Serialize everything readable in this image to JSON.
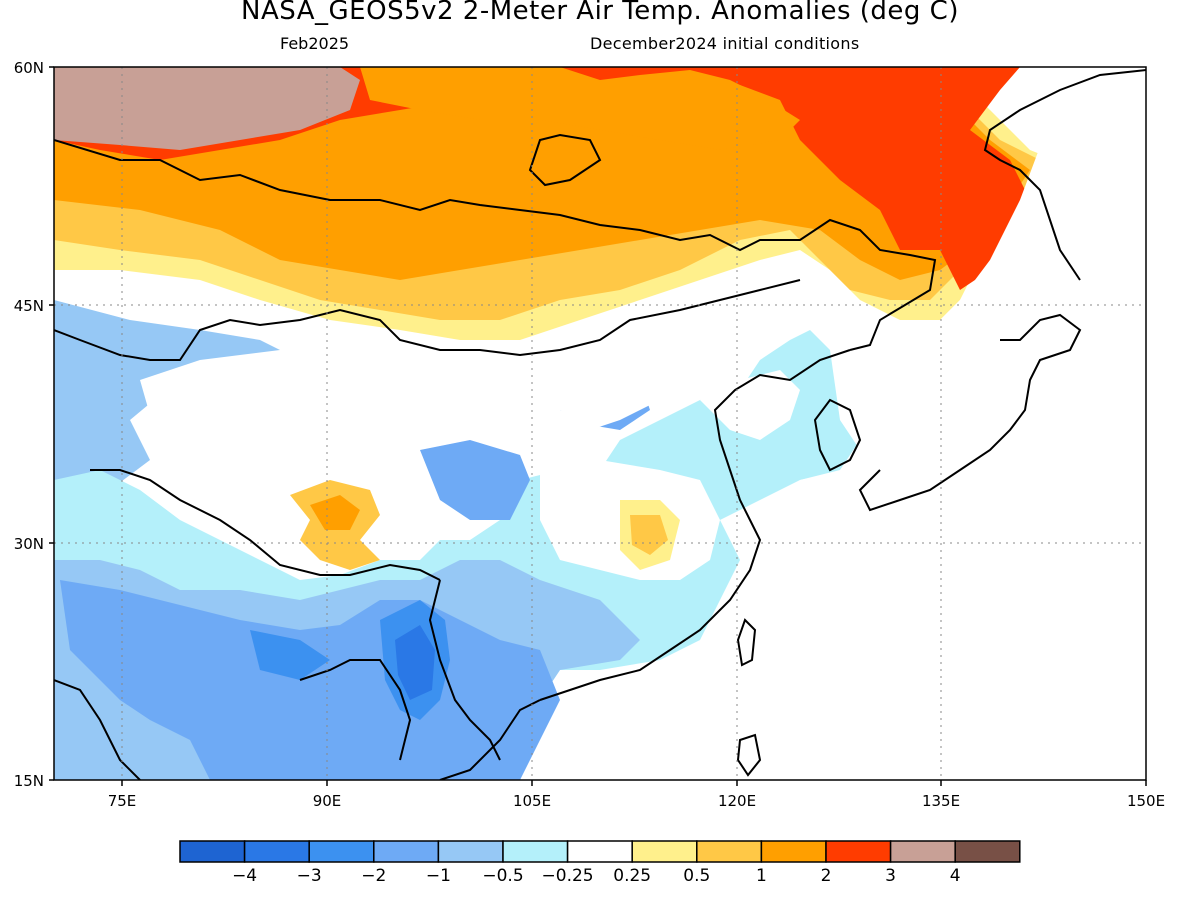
{
  "title": "NASA_GEOS5v2 2-Meter Air Temp. Anomalies (deg C)",
  "subtitle_left": "Feb2025",
  "subtitle_right": "December2024 initial conditions",
  "map": {
    "lat_range": [
      15,
      60
    ],
    "lon_range": [
      70,
      150
    ],
    "lat_ticks": [
      "60N",
      "45N",
      "30N",
      "15N"
    ],
    "lon_ticks": [
      "75E",
      "90E",
      "105E",
      "120E",
      "135E",
      "150E"
    ],
    "gridlines": "dotted"
  },
  "colorbar": {
    "labels": [
      "−4",
      "−3",
      "−2",
      "−1",
      "−0.5",
      "−0.25",
      "0.25",
      "0.5",
      "1",
      "2",
      "3",
      "4"
    ],
    "colors": [
      "#1e64d2",
      "#2a78e6",
      "#3c91f0",
      "#6eaaf5",
      "#96c8f5",
      "#b4f0fa",
      "#ffffff",
      "#fff08c",
      "#ffc846",
      "#ff9f00",
      "#ff3c00",
      "#c8a096",
      "#785046"
    ]
  }
}
